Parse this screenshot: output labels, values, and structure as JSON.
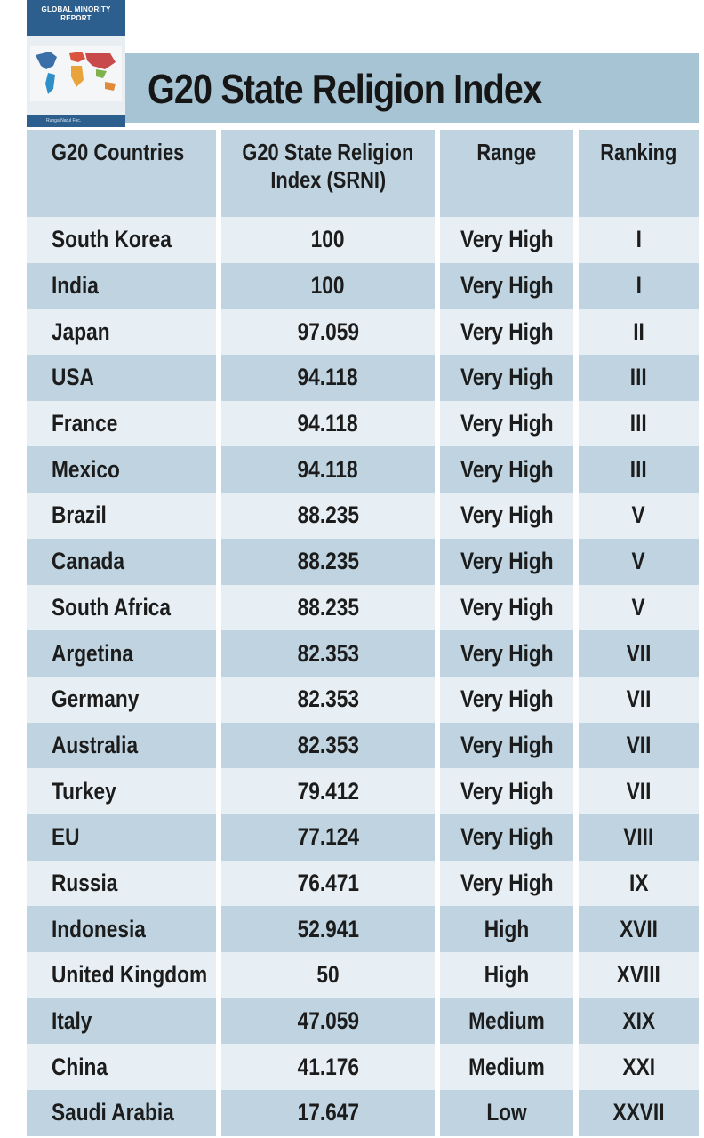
{
  "report_cover": {
    "title_line1": "GLOBAL MINORITY",
    "title_line2": "REPORT",
    "publisher": "Runga Narul Foc."
  },
  "page_title": "G20 State Religion Index",
  "table": {
    "headers": {
      "country": "G20 Countries",
      "index_line1": "G20 State Religion",
      "index_line2": "Index (SRNI)",
      "range": "Range",
      "ranking": "Ranking"
    },
    "rows": [
      {
        "country": "South Korea",
        "index": "100",
        "range": "Very High",
        "ranking": "I"
      },
      {
        "country": "India",
        "index": "100",
        "range": "Very High",
        "ranking": "I"
      },
      {
        "country": "Japan",
        "index": "97.059",
        "range": "Very High",
        "ranking": "II"
      },
      {
        "country": "USA",
        "index": "94.118",
        "range": "Very High",
        "ranking": "III"
      },
      {
        "country": "France",
        "index": "94.118",
        "range": "Very High",
        "ranking": "III"
      },
      {
        "country": "Mexico",
        "index": "94.118",
        "range": "Very High",
        "ranking": "III"
      },
      {
        "country": "Brazil",
        "index": "88.235",
        "range": "Very High",
        "ranking": "V"
      },
      {
        "country": "Canada",
        "index": "88.235",
        "range": "Very High",
        "ranking": "V"
      },
      {
        "country": "South Africa",
        "index": "88.235",
        "range": "Very High",
        "ranking": "V"
      },
      {
        "country": "Argetina",
        "index": "82.353",
        "range": "Very High",
        "ranking": "VII"
      },
      {
        "country": "Germany",
        "index": "82.353",
        "range": "Very High",
        "ranking": "VII"
      },
      {
        "country": "Australia",
        "index": "82.353",
        "range": "Very High",
        "ranking": "VII"
      },
      {
        "country": "Turkey",
        "index": "79.412",
        "range": "Very High",
        "ranking": "VII"
      },
      {
        "country": "EU",
        "index": "77.124",
        "range": "Very High",
        "ranking": "VIII"
      },
      {
        "country": "Russia",
        "index": "76.471",
        "range": "Very High",
        "ranking": "IX"
      },
      {
        "country": "Indonesia",
        "index": "52.941",
        "range": "High",
        "ranking": "XVII"
      },
      {
        "country": "United Kingdom",
        "index": "50",
        "range": "High",
        "ranking": "XVIII"
      },
      {
        "country": "Italy",
        "index": "47.059",
        "range": "Medium",
        "ranking": "XIX"
      },
      {
        "country": "China",
        "index": "41.176",
        "range": "Medium",
        "ranking": "XXI"
      },
      {
        "country": "Saudi Arabia",
        "index": "17.647",
        "range": "Low",
        "ranking": "XXVII"
      }
    ]
  },
  "colors": {
    "header_band": "#a7c4d4",
    "row_dark": "#bfd4e0",
    "row_light": "#e7eff4",
    "cover_blue": "#2d5f8e"
  }
}
